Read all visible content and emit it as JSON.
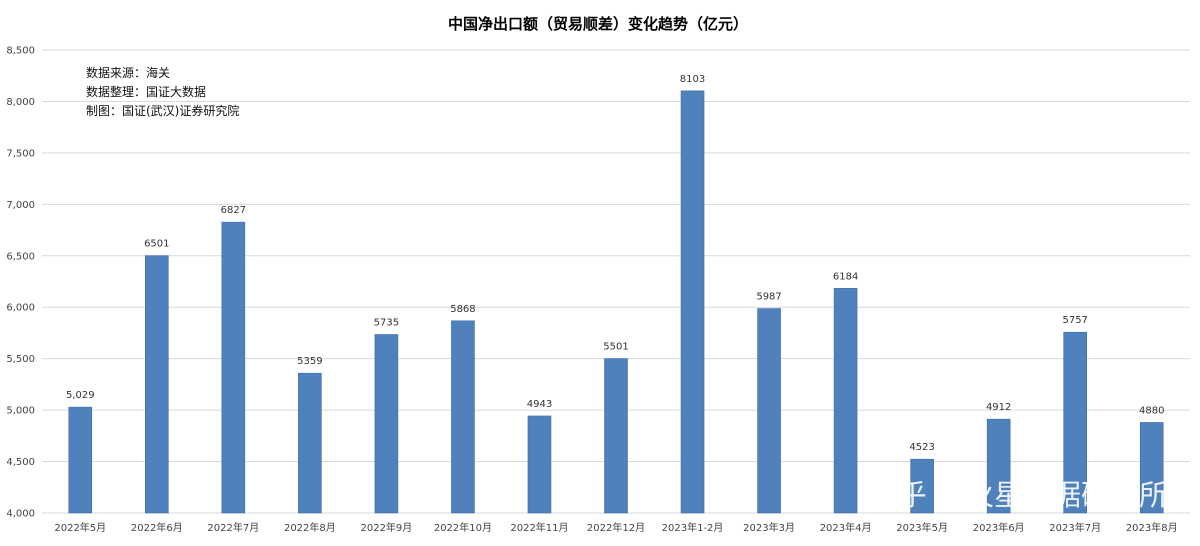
{
  "chart_data": {
    "type": "bar",
    "title": "中国净出口额（贸易顺差）变化趋势（亿元）",
    "notes": [
      "数据来源：海关",
      "数据整理：国证大数据",
      "制图：国证(武汉)证券研究院"
    ],
    "categories": [
      "2022年5月",
      "2022年6月",
      "2022年7月",
      "2022年8月",
      "2022年9月",
      "2022年10月",
      "2022年11月",
      "2022年12月",
      "2023年1-2月",
      "2023年3月",
      "2023年4月",
      "2023年5月",
      "2023年6月",
      "2023年7月",
      "2023年8月"
    ],
    "values": [
      5029,
      6501,
      6827,
      5359,
      5735,
      5868,
      4943,
      5501,
      8103,
      5987,
      6184,
      4523,
      4912,
      5757,
      4880
    ],
    "data_labels": [
      "5,029",
      "6501",
      "6827",
      "5359",
      "5735",
      "5868",
      "4943",
      "5501",
      "8103",
      "5987",
      "6184",
      "4523",
      "4912",
      "5757",
      "4880"
    ],
    "ylim": [
      4000,
      8500
    ],
    "yticks": [
      4000,
      4500,
      5000,
      5500,
      6000,
      6500,
      7000,
      7500,
      8000,
      8500
    ],
    "ytick_labels": [
      "4,000",
      "4,500",
      "5,000",
      "5,500",
      "6,000",
      "6,500",
      "7,000",
      "7,500",
      "8,000",
      "8,500"
    ],
    "grid": true,
    "bar_color": "#4f81bd",
    "watermark": "知乎 @火星数据研究所"
  }
}
